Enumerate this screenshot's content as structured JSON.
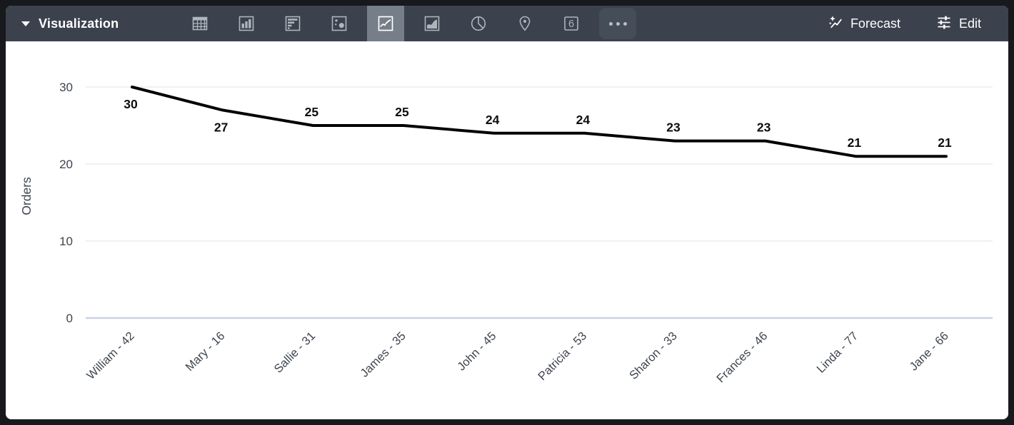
{
  "toolbar": {
    "title": "Visualization",
    "forecast_label": "Forecast",
    "edit_label": "Edit",
    "single_value_label": "6",
    "chart_type_buttons": [
      {
        "name": "table",
        "selected": false
      },
      {
        "name": "column",
        "selected": false
      },
      {
        "name": "bar",
        "selected": false
      },
      {
        "name": "scatter",
        "selected": false
      },
      {
        "name": "line",
        "selected": true
      },
      {
        "name": "area",
        "selected": false
      },
      {
        "name": "pie",
        "selected": false
      },
      {
        "name": "map",
        "selected": false
      },
      {
        "name": "single-value",
        "selected": false
      },
      {
        "name": "more",
        "selected": false
      }
    ]
  },
  "colors": {
    "toolbar_bg": "#3b424d",
    "selected_tile": "#757e89",
    "icon": "#aeb5bd",
    "line": "#000000",
    "gridline": "#e8e8e8",
    "zero_axis": "#c9d2e3",
    "axis_text": "#3e454e",
    "data_label": "#0d0d0d"
  },
  "chart_data": {
    "type": "line",
    "title": "",
    "xlabel": "",
    "ylabel": "Orders",
    "categories": [
      "William - 42",
      "Mary - 16",
      "Sallie - 31",
      "James - 35",
      "John - 45",
      "Patricia - 53",
      "Sharon - 33",
      "Frances - 46",
      "Linda - 77",
      "Jane - 66"
    ],
    "values": [
      30,
      27,
      25,
      25,
      24,
      24,
      23,
      23,
      21,
      21
    ],
    "data_labels": [
      30,
      27,
      25,
      25,
      24,
      24,
      23,
      23,
      21,
      21
    ],
    "label_side": [
      "below",
      "below",
      "above",
      "above",
      "above",
      "above",
      "above",
      "above",
      "above",
      "above"
    ],
    "yticks": [
      0,
      10,
      20,
      30
    ],
    "ylim": [
      0,
      36
    ],
    "grid": true,
    "legend": "none",
    "x_label_rotation": -45
  }
}
